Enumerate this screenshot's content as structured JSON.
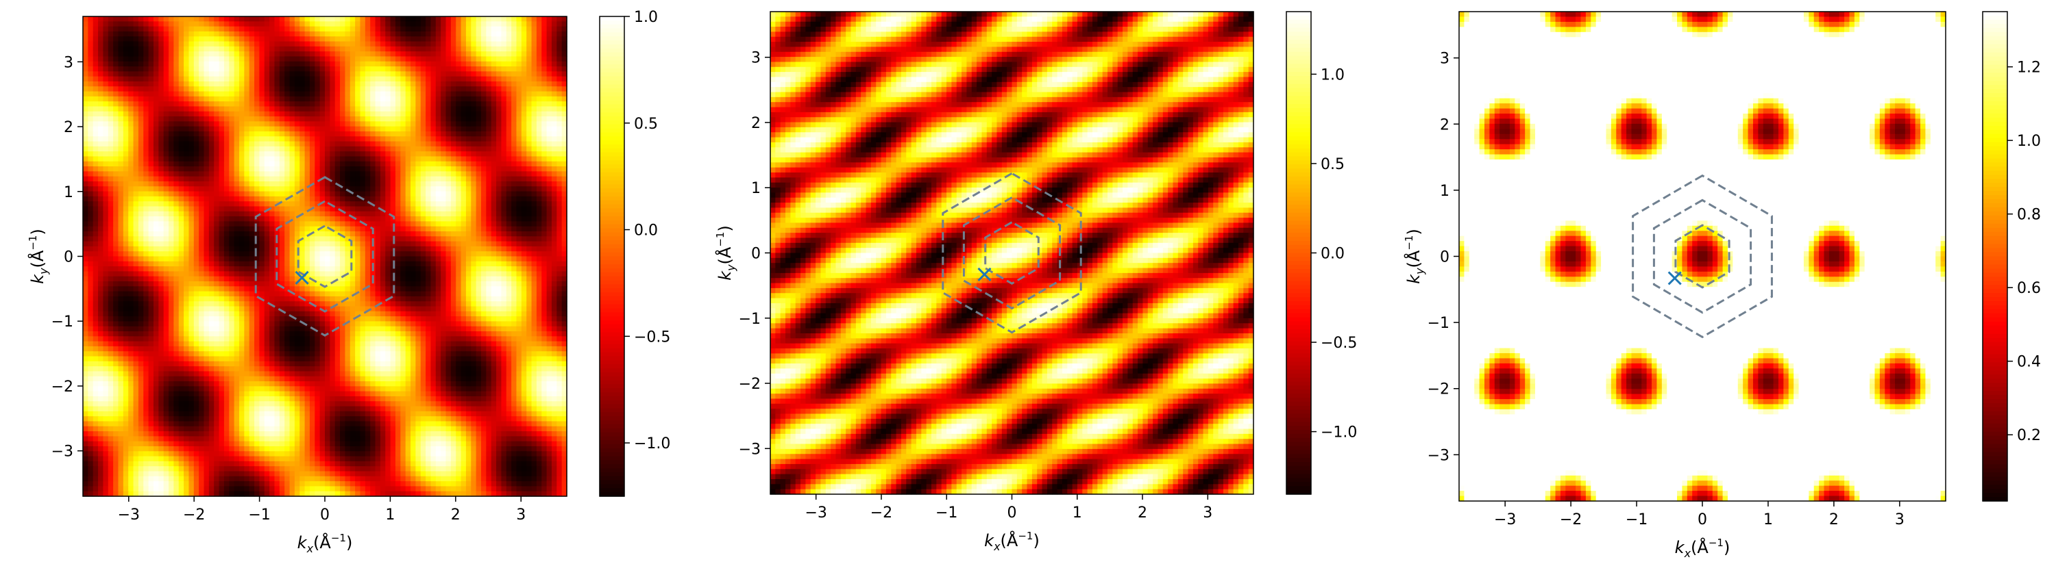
{
  "chart_data": [
    {
      "type": "heatmap",
      "colormap": "hot",
      "grid": false,
      "xlim": [
        -3.7,
        3.7
      ],
      "ylim": [
        -3.7,
        3.7
      ],
      "xticks": [
        -3,
        -2,
        -1,
        0,
        1,
        2,
        3
      ],
      "yticks": [
        -3,
        -2,
        -1,
        0,
        1,
        2,
        3
      ],
      "xlabel": "k_x(Å^{-1})",
      "ylabel": "k_y(Å^{-1})",
      "colorbar": {
        "min": -1.25,
        "max": 1.0,
        "ticks": [
          "1.0",
          "0.5",
          "0.0",
          "−0.5",
          "−1.0"
        ],
        "tick_values": [
          1.0,
          0.5,
          0.0,
          -0.5,
          -1.0
        ]
      },
      "pattern": "ellipse",
      "field_angle_deg": -30,
      "hexagons_radius": [
        0.47,
        0.85,
        1.22
      ],
      "hexagon_color": "#708090",
      "marker": {
        "symbol": "x",
        "x": -0.35,
        "y": -0.33,
        "color": "#1f77b4"
      }
    },
    {
      "type": "heatmap",
      "colormap": "hot",
      "grid": false,
      "xlim": [
        -3.7,
        3.7
      ],
      "ylim": [
        -3.7,
        3.7
      ],
      "xticks": [
        -3,
        -2,
        -1,
        0,
        1,
        2,
        3
      ],
      "yticks": [
        -3,
        -2,
        -1,
        0,
        1,
        2,
        3
      ],
      "xlabel": "k_x(Å^{-1})",
      "ylabel": "k_y(Å^{-1})",
      "colorbar": {
        "min": -1.35,
        "max": 1.35,
        "ticks": [
          "1.0",
          "0.5",
          "0.0",
          "−0.5",
          "−1.0"
        ],
        "tick_values": [
          1.0,
          0.5,
          0.0,
          -0.5,
          -1.0
        ]
      },
      "pattern": "stripe",
      "field_angle_deg": -28,
      "hexagons_radius": [
        0.47,
        0.85,
        1.22
      ],
      "hexagon_color": "#708090",
      "marker": {
        "symbol": "x",
        "x": -0.42,
        "y": -0.33,
        "color": "#1f77b4"
      }
    },
    {
      "type": "heatmap",
      "colormap": "hot",
      "grid": false,
      "xlim": [
        -3.7,
        3.7
      ],
      "ylim": [
        -3.7,
        3.7
      ],
      "xticks": [
        -3,
        -2,
        -1,
        0,
        1,
        2,
        3
      ],
      "yticks": [
        -3,
        -2,
        -1,
        0,
        1,
        2,
        3
      ],
      "xlabel": "k_x(Å^{-1})",
      "ylabel": "k_y(Å^{-1})",
      "colorbar": {
        "min": 0.02,
        "max": 1.35,
        "ticks": [
          "1.2",
          "1.0",
          "0.8",
          "0.6",
          "0.4",
          "0.2"
        ],
        "tick_values": [
          1.2,
          1.0,
          0.8,
          0.6,
          0.4,
          0.2
        ]
      },
      "pattern": "honeycomb",
      "field_angle_deg": 0,
      "hexagons_radius": [
        0.47,
        0.85,
        1.22
      ],
      "hexagon_color": "#708090",
      "marker": {
        "symbol": "x",
        "x": -0.42,
        "y": -0.33,
        "color": "#1f77b4"
      }
    }
  ]
}
